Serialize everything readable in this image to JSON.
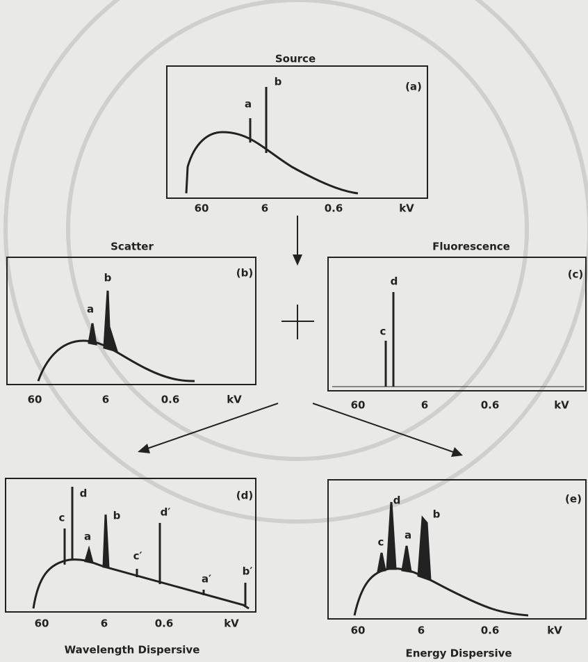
{
  "panels": [
    {
      "title": "Source",
      "tag": "(a)",
      "peaks": [
        "a",
        "b"
      ],
      "ticks": [
        "60",
        "6",
        "0.6",
        "kV"
      ]
    },
    {
      "title": "Scatter",
      "tag": "(b)",
      "peaks": [
        "a",
        "b"
      ],
      "ticks": [
        "60",
        "6",
        "0.6",
        "kV"
      ]
    },
    {
      "title": "Fluorescence",
      "tag": "(c)",
      "peaks": [
        "c",
        "d"
      ],
      "ticks": [
        "60",
        "6",
        "0.6",
        "kV"
      ]
    },
    {
      "tag": "(d)",
      "peaks": [
        "c",
        "d",
        "a",
        "b",
        "c′",
        "d′",
        "a′",
        "b′"
      ],
      "ticks": [
        "60",
        "6",
        "0.6",
        "kV"
      ],
      "caption": "Wavelength Dispersive"
    },
    {
      "tag": "(e)",
      "peaks": [
        "c",
        "d",
        "a",
        "b"
      ],
      "ticks": [
        "60",
        "6",
        "0.6",
        "kV"
      ],
      "caption": "Energy Dispersive"
    }
  ]
}
